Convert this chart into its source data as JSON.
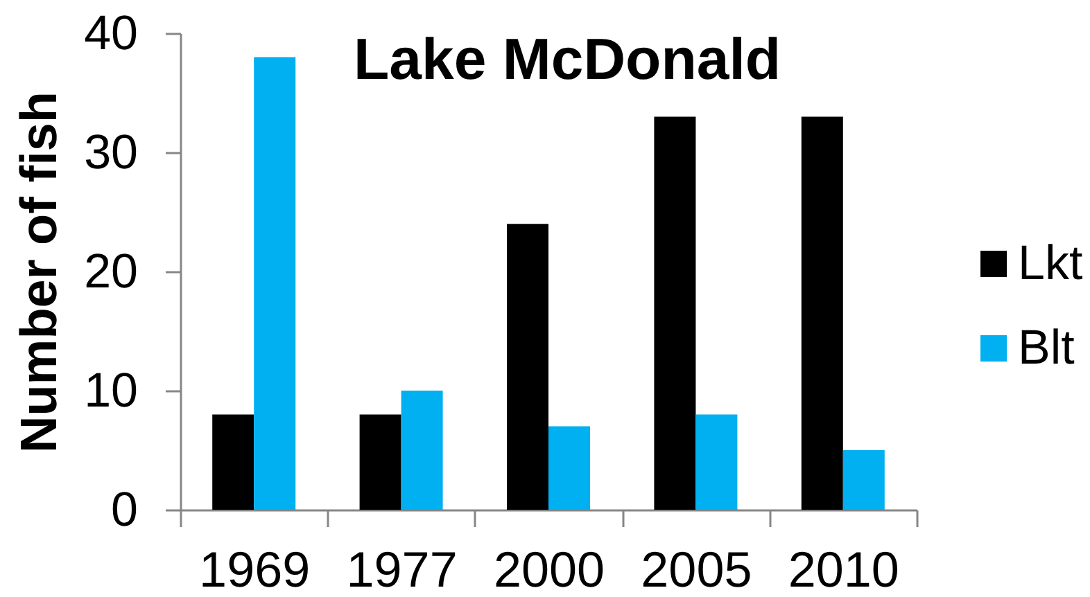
{
  "chart_data": {
    "type": "bar",
    "title": "Lake McDonald",
    "ylabel": "Number of fish",
    "categories": [
      "1969",
      "1977",
      "2000",
      "2005",
      "2010"
    ],
    "series": [
      {
        "name": "Lkt",
        "color": "#000000",
        "values": [
          8,
          8,
          24,
          33,
          33
        ]
      },
      {
        "name": "Blt",
        "color": "#00b0f0",
        "values": [
          38,
          10,
          7,
          8,
          5
        ]
      }
    ],
    "ylim": [
      0,
      40
    ],
    "yticks": [
      0,
      10,
      20,
      30,
      40
    ],
    "grid": false,
    "legend": "right"
  }
}
